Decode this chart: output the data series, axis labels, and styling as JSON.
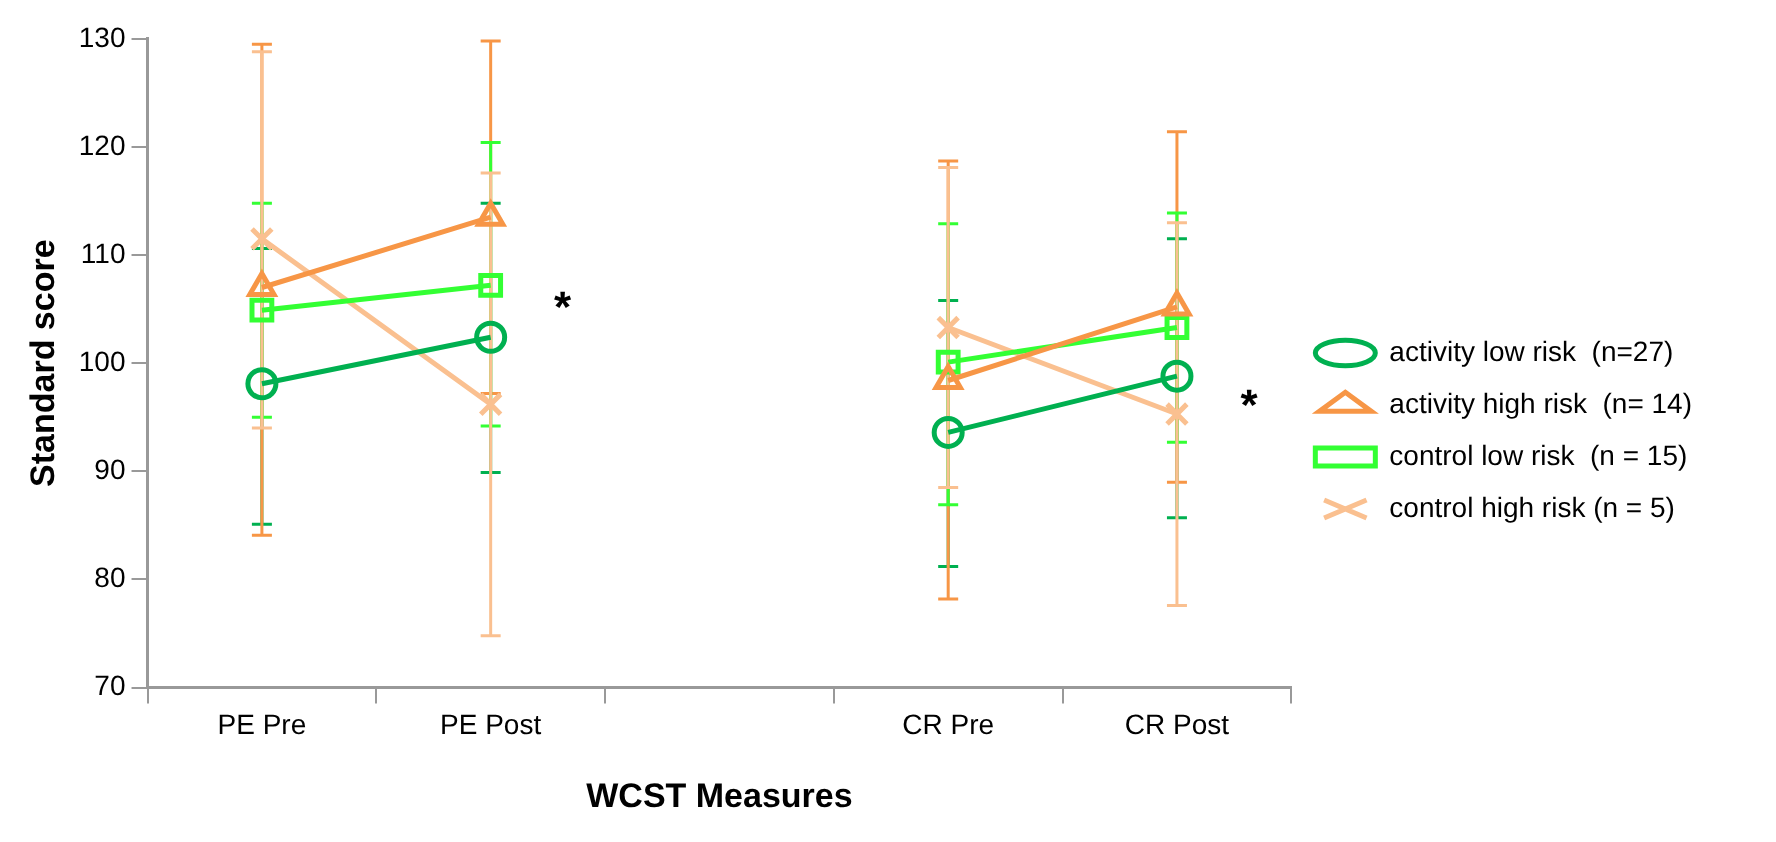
{
  "chart_data": {
    "type": "line",
    "xlabel": "WCST Measures",
    "ylabel": "Standard score",
    "categories": [
      "PE Pre",
      "PE Post",
      null,
      "CR Pre",
      "CR Post"
    ],
    "ylim": [
      70,
      130
    ],
    "yticks": [
      70,
      80,
      90,
      100,
      110,
      120,
      130
    ],
    "grid": false,
    "legend": "right",
    "series": [
      {
        "name": "activity low risk  (n=27)",
        "color": "#00b050",
        "marker": "circle",
        "values": [
          98.1,
          102.4,
          null,
          93.6,
          98.8
        ],
        "errors": [
          [
            85.1,
            110.6
          ],
          [
            89.9,
            114.8
          ],
          null,
          [
            81.2,
            105.8
          ],
          [
            85.7,
            111.5
          ]
        ]
      },
      {
        "name": "activity high risk  (n= 14)",
        "color": "#f79646",
        "marker": "triangle",
        "values": [
          107,
          113.5,
          null,
          98.4,
          105.2
        ],
        "errors": [
          [
            84.1,
            129.5
          ],
          [
            97.2,
            129.8
          ],
          null,
          [
            78.2,
            118.7
          ],
          [
            89,
            121.4
          ]
        ]
      },
      {
        "name": "control low risk  (n = 15)",
        "color": "#33ff33",
        "marker": "square",
        "values": [
          104.9,
          107.2,
          null,
          100.1,
          103.3
        ],
        "errors": [
          [
            95,
            114.8
          ],
          [
            94.2,
            120.4
          ],
          null,
          [
            86.9,
            112.9
          ],
          [
            92.7,
            113.9
          ]
        ]
      },
      {
        "name": "control high risk (n = 5)",
        "color": "#fac090",
        "marker": "cross",
        "values": [
          111.5,
          96.2,
          null,
          103.3,
          95.3
        ],
        "errors": [
          [
            94,
            128.8
          ],
          [
            74.8,
            117.6
          ],
          null,
          [
            88.5,
            118.1
          ],
          [
            77.6,
            113
          ]
        ]
      }
    ],
    "annotations": [
      {
        "text": "*",
        "x": "PE Post",
        "y": 106
      },
      {
        "text": "*",
        "x": "CR Post",
        "y": 97
      }
    ]
  }
}
